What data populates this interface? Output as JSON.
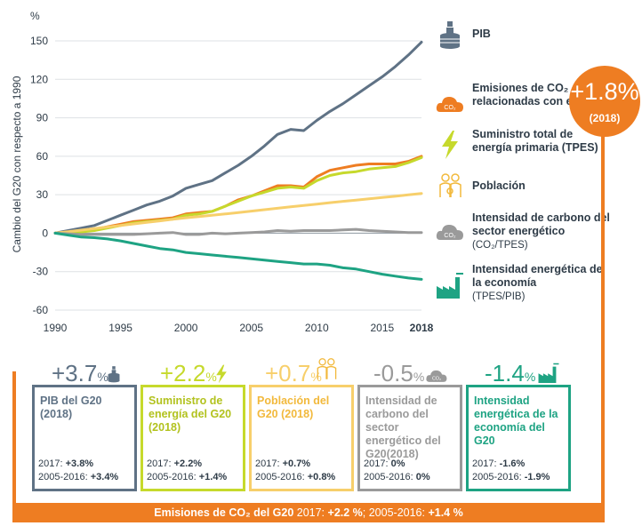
{
  "chart_data": {
    "type": "line",
    "ylabel": "Cambio del G20 con respecto a 1990",
    "yunit": "%",
    "ylim": [
      -60,
      150
    ],
    "yticks": [
      -60,
      -30,
      0,
      30,
      60,
      90,
      120,
      150
    ],
    "xlim": [
      1990,
      2018
    ],
    "xticks": [
      "1990",
      "1995",
      "2000",
      "2005",
      "2010",
      "2015",
      "2018"
    ],
    "x": [
      1990,
      1991,
      1992,
      1993,
      1994,
      1995,
      1996,
      1997,
      1998,
      1999,
      2000,
      2001,
      2002,
      2003,
      2004,
      2005,
      2006,
      2007,
      2008,
      2009,
      2010,
      2011,
      2012,
      2013,
      2014,
      2015,
      2016,
      2017,
      2018
    ],
    "series": [
      {
        "name": "PIB",
        "color": "#5f7285",
        "values": [
          0,
          2,
          4,
          6,
          10,
          14,
          18,
          22,
          25,
          29,
          35,
          38,
          41,
          47,
          53,
          60,
          68,
          77,
          81,
          80,
          88,
          95,
          101,
          108,
          115,
          122,
          130,
          139,
          149
        ]
      },
      {
        "name": "Emisiones de CO2 relacionadas con energía",
        "color": "#ee7d22",
        "values": [
          0,
          1,
          1,
          3,
          5,
          7,
          9,
          10,
          11,
          12,
          15,
          16,
          17,
          21,
          26,
          29,
          33,
          37,
          37,
          36,
          44,
          49,
          51,
          53,
          54,
          54,
          54,
          56,
          60
        ]
      },
      {
        "name": "Suministro total de energía primaria (TPES)",
        "color": "#c6d92c",
        "values": [
          0,
          1,
          1,
          2,
          4,
          6,
          8,
          9,
          10,
          11,
          14,
          15,
          17,
          21,
          25,
          29,
          32,
          35,
          36,
          35,
          41,
          45,
          47,
          48,
          50,
          51,
          52,
          55,
          59
        ]
      },
      {
        "name": "Población",
        "color": "#f7cf6b",
        "values": [
          0,
          1.2,
          2.4,
          3.6,
          4.8,
          6,
          7.2,
          8.4,
          9.6,
          10.8,
          12,
          13,
          14,
          15,
          16.1,
          17.2,
          18.3,
          19.4,
          20.5,
          21.6,
          22.7,
          23.8,
          24.8,
          25.8,
          26.8,
          27.8,
          28.8,
          29.9,
          31
        ]
      },
      {
        "name": "Intensidad de carbono del sector energético",
        "color": "#9a9a9a",
        "values": [
          0,
          -0.5,
          -1,
          -1,
          -1,
          -1,
          -1,
          -0.5,
          0,
          0.5,
          -1,
          -1,
          0,
          -0.5,
          0,
          0.5,
          1,
          2,
          1.5,
          2,
          2,
          2,
          2.5,
          3,
          2,
          1.5,
          1,
          0.5,
          0.5
        ]
      },
      {
        "name": "Intensidad energética de la economía",
        "color": "#1ea383",
        "values": [
          0,
          -1.5,
          -3,
          -3.5,
          -4.5,
          -6,
          -8,
          -10,
          -12,
          -13,
          -15,
          -16,
          -17,
          -18,
          -19,
          -20,
          -21,
          -22,
          -23,
          -24,
          -24,
          -25,
          -27,
          -28,
          -30,
          -32,
          -33.5,
          -35,
          -36
        ]
      }
    ]
  },
  "legend": [
    {
      "label": "PIB",
      "sub": ""
    },
    {
      "label": "Emisiones de CO₂ relacionadas con energía",
      "sub": ""
    },
    {
      "label": "Suministro total de energía primaria (TPES)",
      "sub": ""
    },
    {
      "label": "Población",
      "sub": ""
    },
    {
      "label": "Intensidad de carbono del sector energético",
      "sub": "(CO₂/TPES)"
    },
    {
      "label": "Intensidad energética de la economía",
      "sub": "(TPES/PIB)"
    }
  ],
  "bubble": {
    "value": "+1.8%",
    "year": "(2018)"
  },
  "icon_co2_text": "CO₂",
  "boxes": [
    {
      "pct": "+3.7",
      "unit": "%",
      "title": "PIB del G20 (2018)",
      "l1_label": "2017: ",
      "l1_val": "+3.8%",
      "l2_label": "2005-2016: ",
      "l2_val": "+3.4%",
      "color": "#5f7285",
      "title_color": "#5f7285"
    },
    {
      "pct": "+2.2",
      "unit": "%",
      "title": "Suministro de energía del G20 (2018)",
      "l1_label": "2017: ",
      "l1_val": "+2.2%",
      "l2_label": "2005-2016: ",
      "l2_val": "+1.4%",
      "color": "#c6d92c",
      "title_color": "#b2c21e"
    },
    {
      "pct": "+0.7",
      "unit": "%",
      "title": "Población del G20 (2018)",
      "l1_label": "2017: ",
      "l1_val": "+0.7%",
      "l2_label": "2005-2016: ",
      "l2_val": "+0.8%",
      "color": "#f7cf6b",
      "title_color": "#f2b93c"
    },
    {
      "pct": "-0.5",
      "unit": "%",
      "title": "Intensidad de carbono del sector energético del G20(2018)",
      "l1_label": "2017: ",
      "l1_val": "0%",
      "l2_label": "2005-2016: ",
      "l2_val": "0%",
      "color": "#9a9a9a",
      "title_color": "#9a9a9a"
    },
    {
      "pct": "-1.4",
      "unit": "%",
      "title": "Intensidad energética de la economía del G20",
      "l1_label": "2017: ",
      "l1_val": "-1.6%",
      "l2_label": "2005-2016: ",
      "l2_val": "-1.9%",
      "color": "#1ea383",
      "title_color": "#1ea383"
    }
  ],
  "bottom": {
    "label": "Emisiones de CO₂ del G20",
    "rest": " 2017: ",
    "v1": "+2.2 %",
    "mid": "; 2005-2016: ",
    "v2": "+1.4 %"
  }
}
